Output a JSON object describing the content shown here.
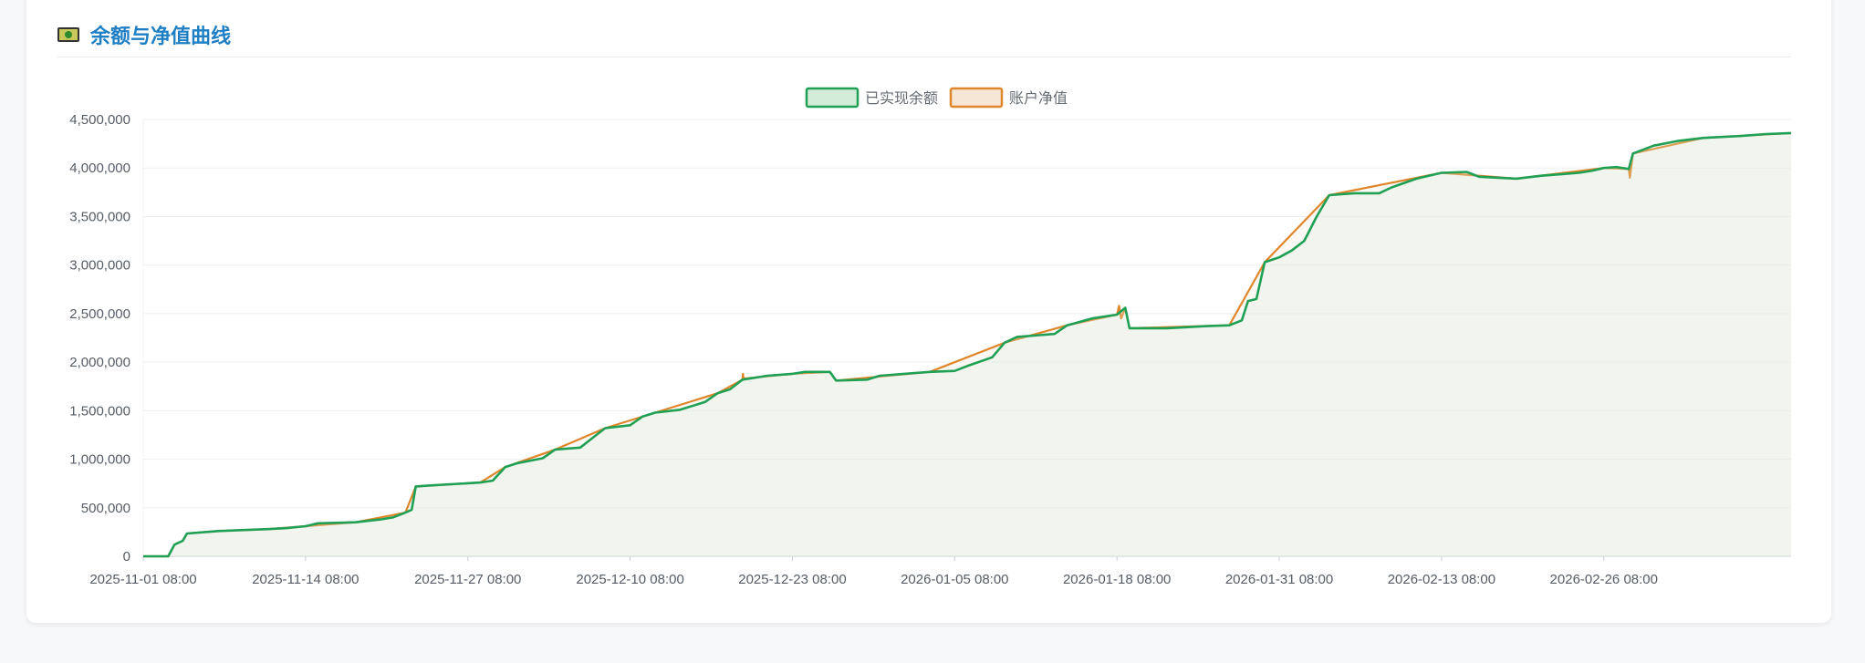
{
  "card": {
    "title": "余额与净值曲线",
    "icon": "chart-icon"
  },
  "chart_data": {
    "type": "line",
    "legend_position": "top-center",
    "grid": true,
    "ylim": [
      0,
      4500000
    ],
    "y_ticks": [
      0,
      500000,
      1000000,
      1500000,
      2000000,
      2500000,
      3000000,
      3500000,
      4000000,
      4500000
    ],
    "y_tick_labels": [
      "0",
      "500,000",
      "1,000,000",
      "1,500,000",
      "2,000,000",
      "2,500,000",
      "3,000,000",
      "3,500,000",
      "4,000,000",
      "4,500,000"
    ],
    "x_tick_labels": [
      "2025-11-01 08:00",
      "2025-11-14 08:00",
      "2025-11-27 08:00",
      "2025-12-10 08:00",
      "2025-12-23 08:00",
      "2026-01-05 08:00",
      "2026-01-18 08:00",
      "2026-01-31 08:00",
      "2026-02-13 08:00",
      "2026-02-26 08:00"
    ],
    "x_range": [
      "2025-11-01 08:00",
      "2026-03-13 08:00"
    ],
    "series": [
      {
        "name": "已实现余额",
        "color": "#1fa055",
        "fill": "#d3ecd9",
        "points": [
          [
            "2025-11-01 08:00",
            0
          ],
          [
            "2025-11-03 08:00",
            0
          ],
          [
            "2025-11-03 20:00",
            120000
          ],
          [
            "2025-11-04 12:00",
            160000
          ],
          [
            "2025-11-04 20:00",
            235000
          ],
          [
            "2025-11-07 08:00",
            260000
          ],
          [
            "2025-11-11 08:00",
            280000
          ],
          [
            "2025-11-12 20:00",
            290000
          ],
          [
            "2025-11-14 08:00",
            310000
          ],
          [
            "2025-11-15 08:00",
            340000
          ],
          [
            "2025-11-18 08:00",
            350000
          ],
          [
            "2025-11-20 08:00",
            380000
          ],
          [
            "2025-11-21 08:00",
            400000
          ],
          [
            "2025-11-22 08:00",
            450000
          ],
          [
            "2025-11-22 20:00",
            480000
          ],
          [
            "2025-11-23 04:00",
            720000
          ],
          [
            "2025-11-24 08:00",
            730000
          ],
          [
            "2025-11-28 08:00",
            760000
          ],
          [
            "2025-11-29 08:00",
            780000
          ],
          [
            "2025-11-30 08:00",
            920000
          ],
          [
            "2025-12-01 08:00",
            960000
          ],
          [
            "2025-12-03 08:00",
            1010000
          ],
          [
            "2025-12-04 08:00",
            1100000
          ],
          [
            "2025-12-06 08:00",
            1120000
          ],
          [
            "2025-12-07 08:00",
            1220000
          ],
          [
            "2025-12-08 08:00",
            1320000
          ],
          [
            "2025-12-10 08:00",
            1350000
          ],
          [
            "2025-12-11 08:00",
            1440000
          ],
          [
            "2025-12-12 08:00",
            1480000
          ],
          [
            "2025-12-14 08:00",
            1510000
          ],
          [
            "2025-12-16 08:00",
            1590000
          ],
          [
            "2025-12-17 08:00",
            1680000
          ],
          [
            "2025-12-18 08:00",
            1720000
          ],
          [
            "2025-12-19 08:00",
            1820000
          ],
          [
            "2025-12-21 08:00",
            1860000
          ],
          [
            "2025-12-23 08:00",
            1880000
          ],
          [
            "2025-12-24 08:00",
            1900000
          ],
          [
            "2025-12-26 08:00",
            1900000
          ],
          [
            "2025-12-26 20:00",
            1810000
          ],
          [
            "2025-12-29 08:00",
            1820000
          ],
          [
            "2025-12-30 08:00",
            1860000
          ],
          [
            "2026-01-03 08:00",
            1900000
          ],
          [
            "2026-01-05 08:00",
            1910000
          ],
          [
            "2026-01-06 08:00",
            1960000
          ],
          [
            "2026-01-08 08:00",
            2050000
          ],
          [
            "2026-01-09 08:00",
            2200000
          ],
          [
            "2026-01-10 08:00",
            2260000
          ],
          [
            "2026-01-13 08:00",
            2290000
          ],
          [
            "2026-01-14 08:00",
            2380000
          ],
          [
            "2026-01-16 08:00",
            2450000
          ],
          [
            "2026-01-18 08:00",
            2490000
          ],
          [
            "2026-01-19 00:00",
            2560000
          ],
          [
            "2026-01-19 08:00",
            2350000
          ],
          [
            "2026-01-22 08:00",
            2350000
          ],
          [
            "2026-01-25 08:00",
            2370000
          ],
          [
            "2026-01-27 08:00",
            2380000
          ],
          [
            "2026-01-28 08:00",
            2430000
          ],
          [
            "2026-01-28 20:00",
            2630000
          ],
          [
            "2026-01-29 12:00",
            2650000
          ],
          [
            "2026-01-30 04:00",
            3030000
          ],
          [
            "2026-01-31 08:00",
            3080000
          ],
          [
            "2026-02-01 08:00",
            3150000
          ],
          [
            "2026-02-02 08:00",
            3250000
          ],
          [
            "2026-02-03 08:00",
            3500000
          ],
          [
            "2026-02-04 08:00",
            3720000
          ],
          [
            "2026-02-06 08:00",
            3740000
          ],
          [
            "2026-02-08 08:00",
            3740000
          ],
          [
            "2026-02-09 08:00",
            3800000
          ],
          [
            "2026-02-11 08:00",
            3890000
          ],
          [
            "2026-02-13 08:00",
            3950000
          ],
          [
            "2026-02-15 08:00",
            3960000
          ],
          [
            "2026-02-16 08:00",
            3910000
          ],
          [
            "2026-02-19 08:00",
            3890000
          ],
          [
            "2026-02-21 08:00",
            3920000
          ],
          [
            "2026-02-23 08:00",
            3940000
          ],
          [
            "2026-02-24 08:00",
            3950000
          ],
          [
            "2026-02-25 08:00",
            3970000
          ],
          [
            "2026-02-26 08:00",
            4000000
          ],
          [
            "2026-02-27 08:00",
            4010000
          ],
          [
            "2026-02-28 08:00",
            3990000
          ],
          [
            "2026-02-28 16:00",
            4150000
          ],
          [
            "2026-03-02 08:00",
            4230000
          ],
          [
            "2026-03-04 08:00",
            4280000
          ],
          [
            "2026-03-06 08:00",
            4310000
          ],
          [
            "2026-03-09 08:00",
            4330000
          ],
          [
            "2026-03-11 08:00",
            4350000
          ],
          [
            "2026-03-13 08:00",
            4360000
          ]
        ]
      },
      {
        "name": "账户净值",
        "color": "#e0862a",
        "fill": "#f5e6d6",
        "points": [
          [
            "2025-11-01 08:00",
            0
          ],
          [
            "2025-11-03 08:00",
            0
          ],
          [
            "2025-11-03 20:00",
            120000
          ],
          [
            "2025-11-04 12:00",
            160000
          ],
          [
            "2025-11-04 20:00",
            235000
          ],
          [
            "2025-11-07 08:00",
            260000
          ],
          [
            "2025-11-11 08:00",
            280000
          ],
          [
            "2025-11-14 08:00",
            310000
          ],
          [
            "2025-11-18 08:00",
            350000
          ],
          [
            "2025-11-22 08:00",
            450000
          ],
          [
            "2025-11-23 04:00",
            720000
          ],
          [
            "2025-11-28 08:00",
            760000
          ],
          [
            "2025-11-30 08:00",
            920000
          ],
          [
            "2025-12-04 08:00",
            1100000
          ],
          [
            "2025-12-08 08:00",
            1320000
          ],
          [
            "2025-12-12 08:00",
            1480000
          ],
          [
            "2025-12-17 08:00",
            1680000
          ],
          [
            "2025-12-19 08:00",
            1820000
          ],
          [
            "2025-12-19 09:00",
            1880000
          ],
          [
            "2025-12-19 10:00",
            1830000
          ],
          [
            "2025-12-23 08:00",
            1880000
          ],
          [
            "2025-12-26 08:00",
            1900000
          ],
          [
            "2025-12-26 20:00",
            1810000
          ],
          [
            "2026-01-03 08:00",
            1900000
          ],
          [
            "2026-01-09 08:00",
            2200000
          ],
          [
            "2026-01-14 08:00",
            2380000
          ],
          [
            "2026-01-18 08:00",
            2490000
          ],
          [
            "2026-01-18 12:00",
            2580000
          ],
          [
            "2026-01-18 16:00",
            2450000
          ],
          [
            "2026-01-19 00:00",
            2560000
          ],
          [
            "2026-01-19 08:00",
            2350000
          ],
          [
            "2026-01-27 08:00",
            2380000
          ],
          [
            "2026-01-30 04:00",
            3030000
          ],
          [
            "2026-02-04 08:00",
            3720000
          ],
          [
            "2026-02-13 08:00",
            3950000
          ],
          [
            "2026-02-19 08:00",
            3890000
          ],
          [
            "2026-02-26 08:00",
            4000000
          ],
          [
            "2026-02-28 08:00",
            3990000
          ],
          [
            "2026-02-28 10:00",
            3900000
          ],
          [
            "2026-02-28 16:00",
            4150000
          ],
          [
            "2026-03-06 08:00",
            4310000
          ],
          [
            "2026-03-13 08:00",
            4360000
          ]
        ]
      }
    ]
  }
}
